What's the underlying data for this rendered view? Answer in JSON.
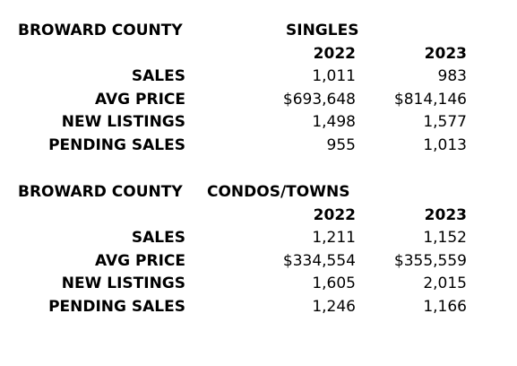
{
  "sections": [
    {
      "region": "BROWARD COUNTY",
      "category": "SINGLES",
      "years": [
        "2022",
        "2023"
      ],
      "rows": [
        {
          "label": "SALES",
          "v2022": "1,011",
          "v2023": "983"
        },
        {
          "label": "AVG PRICE",
          "v2022": "$693,648",
          "v2023": "$814,146"
        },
        {
          "label": "NEW LISTINGS",
          "v2022": "1,498",
          "v2023": "1,577"
        },
        {
          "label": "PENDING SALES",
          "v2022": "955",
          "v2023": "1,013"
        }
      ]
    },
    {
      "region": "BROWARD COUNTY",
      "category": "CONDOS/TOWNS",
      "years": [
        "2022",
        "2023"
      ],
      "rows": [
        {
          "label": "SALES",
          "v2022": "1,211",
          "v2023": "1,152"
        },
        {
          "label": "AVG PRICE",
          "v2022": "$334,554",
          "v2023": "$355,559"
        },
        {
          "label": "NEW LISTINGS",
          "v2022": "1,605",
          "v2023": "2,015"
        },
        {
          "label": "PENDING SALES",
          "v2022": "1,246",
          "v2023": "1,166"
        }
      ]
    }
  ]
}
